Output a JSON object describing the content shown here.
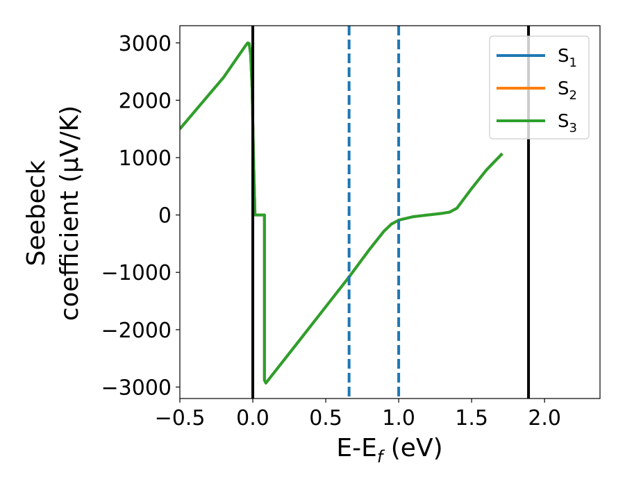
{
  "colors": {
    "S1": "#1f77b4",
    "S2": "#ff7f0e",
    "S3": "#2ca02c",
    "reference_line": "#000000",
    "dashed_line": "#1f77b4"
  },
  "chart_data": {
    "type": "line",
    "title": "",
    "xlabel": {
      "main": "E-E",
      "sub": "f",
      "tail": " (eV)"
    },
    "ylabel": {
      "line1": "Seebeck",
      "line2": "coefficient  (μV/K)"
    },
    "xlim": [
      -0.5,
      2.38
    ],
    "ylim": [
      -3200,
      3300
    ],
    "x_ticks": [
      -0.5,
      0.0,
      0.5,
      1.0,
      1.5,
      2.0
    ],
    "x_tick_labels": [
      "−0.5",
      "0.0",
      "0.5",
      "1.0",
      "1.5",
      "2.0"
    ],
    "y_ticks": [
      -3000,
      -2000,
      -1000,
      0,
      1000,
      2000,
      3000
    ],
    "y_tick_labels": [
      "−3000",
      "−2000",
      "−1000",
      "0",
      "1000",
      "2000",
      "3000"
    ],
    "grid": false,
    "legend_position": "top-right",
    "vertical_lines": [
      {
        "x": 0.0,
        "style": "solid"
      },
      {
        "x": 1.89,
        "style": "solid"
      },
      {
        "x": 0.66,
        "style": "dashed"
      },
      {
        "x": 1.0,
        "style": "dashed"
      }
    ],
    "series": [
      {
        "name": "S1",
        "legend": {
          "main": "S",
          "sub": "1"
        },
        "color_key": "S1",
        "x": [
          -0.5,
          -0.2,
          -0.05,
          -0.035,
          -0.025,
          -0.015,
          -0.005,
          0.005,
          0.015,
          0.025,
          0.08,
          0.08,
          0.09,
          0.3,
          0.5,
          0.66,
          0.8,
          0.9,
          0.95,
          1.0,
          1.1,
          1.2,
          1.3,
          1.35,
          1.4,
          1.5,
          1.6,
          1.71
        ],
        "y": [
          1500,
          2400,
          2950,
          3000,
          2990,
          2800,
          2200,
          1000,
          0,
          0,
          0,
          -2880,
          -2930,
          -2250,
          -1600,
          -1080,
          -600,
          -280,
          -160,
          -90,
          -30,
          0,
          30,
          50,
          120,
          460,
          780,
          1070
        ]
      },
      {
        "name": "S2",
        "legend": {
          "main": "S",
          "sub": "2"
        },
        "color_key": "S2",
        "x": [
          -0.5,
          -0.2,
          -0.05,
          -0.035,
          -0.025,
          -0.015,
          -0.005,
          0.005,
          0.015,
          0.025,
          0.08,
          0.08,
          0.09,
          0.3,
          0.5,
          0.66,
          0.8,
          0.9,
          0.95,
          1.0,
          1.1,
          1.2,
          1.3,
          1.35,
          1.4,
          1.5,
          1.6,
          1.71
        ],
        "y": [
          1500,
          2400,
          2950,
          3000,
          2990,
          2800,
          2200,
          1000,
          0,
          0,
          0,
          -2880,
          -2930,
          -2250,
          -1600,
          -1080,
          -600,
          -280,
          -160,
          -90,
          -30,
          0,
          30,
          50,
          120,
          460,
          780,
          1070
        ]
      },
      {
        "name": "S3",
        "legend": {
          "main": "S",
          "sub": "3"
        },
        "color_key": "S3",
        "x": [
          -0.5,
          -0.2,
          -0.05,
          -0.035,
          -0.025,
          -0.015,
          -0.005,
          0.005,
          0.015,
          0.025,
          0.08,
          0.08,
          0.09,
          0.3,
          0.5,
          0.66,
          0.8,
          0.9,
          0.95,
          1.0,
          1.1,
          1.2,
          1.3,
          1.35,
          1.4,
          1.5,
          1.6,
          1.71
        ],
        "y": [
          1500,
          2400,
          2950,
          3000,
          2990,
          2800,
          2200,
          1000,
          0,
          0,
          0,
          -2880,
          -2930,
          -2250,
          -1600,
          -1080,
          -600,
          -280,
          -160,
          -90,
          -30,
          0,
          30,
          50,
          120,
          460,
          780,
          1070
        ]
      }
    ]
  }
}
